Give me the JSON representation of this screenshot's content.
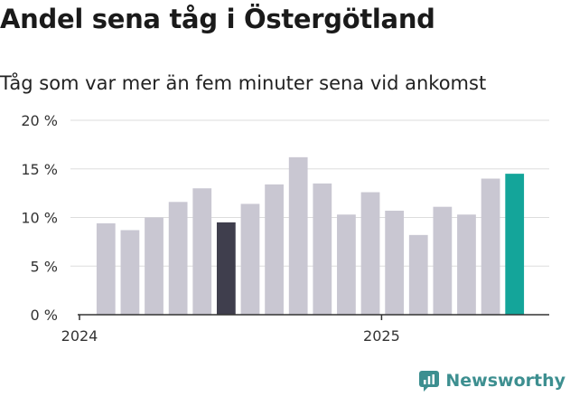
{
  "title": "Andel sena tåg i Östergötland",
  "subtitle": "Tåg som var mer än fem minuter sena vid ankomst",
  "logo_text": "Newsworthy",
  "colors": {
    "bar_default": "#c9c7d2",
    "bar_highlight_dark": "#3f3e4d",
    "bar_highlight_latest": "#14a59a",
    "grid": "#dddddd",
    "axis": "#333333",
    "logo": "#3d8f90"
  },
  "chart_data": {
    "type": "bar",
    "title": "Andel sena tåg i Östergötland",
    "subtitle": "Tåg som var mer än fem minuter sena vid ankomst",
    "xlabel": "",
    "ylabel": "",
    "ylim": [
      0,
      20
    ],
    "yticks": [
      0,
      5,
      10,
      15,
      20
    ],
    "ytick_labels": [
      "0 %",
      "5 %",
      "10 %",
      "15 %",
      "20 %"
    ],
    "xtick_labels": [
      {
        "label": "2024",
        "position": 0
      },
      {
        "label": "2025",
        "position": 12
      }
    ],
    "grid": true,
    "values": [
      9.4,
      8.7,
      10.0,
      11.6,
      13.0,
      9.5,
      11.4,
      13.4,
      16.2,
      13.5,
      10.3,
      12.6,
      10.7,
      8.2,
      11.1,
      10.3,
      14.0,
      14.5
    ],
    "highlight": {
      "5": "dark",
      "17": "latest"
    }
  }
}
